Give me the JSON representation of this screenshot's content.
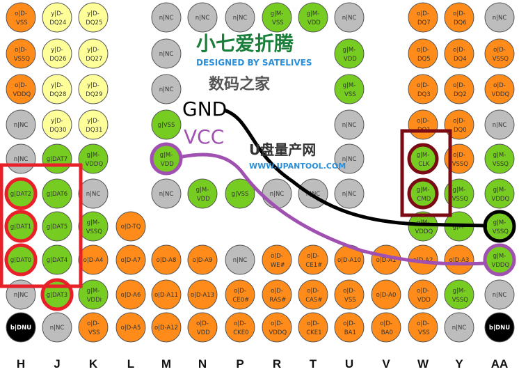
{
  "columns": [
    "H",
    "J",
    "K",
    "L",
    "M",
    "N",
    "P",
    "R",
    "T",
    "U",
    "V",
    "W",
    "Y",
    "AA"
  ],
  "palette": {
    "o": "#FF8C1A",
    "y": "#FFFF99",
    "g": "#77CC22",
    "n": "#BDBDBD",
    "b": "#000000"
  },
  "pin_rows": [
    [
      "o|D-\nVSS",
      "y|D-\nDQ24",
      "y|D-\nDQ25",
      null,
      "n|NC",
      "n|NC",
      "n|NC",
      "g|M-\nVSS",
      "g|M-\nVDD",
      "n|NC",
      null,
      "o|D-\nDQ7",
      "o|D-\nDQ6",
      "n|NC"
    ],
    [
      "o|D-\nVSSQ",
      "y|D-\nDQ26",
      "y|D-\nDQ27",
      null,
      "n|NC",
      null,
      null,
      null,
      null,
      "g|M-\nVDD",
      null,
      "o|D-\nDQ5",
      "o|D-\nDQ4",
      "o|D-\nVSSQ"
    ],
    [
      "o|D-\nVDDQ",
      "y|D-\nDQ28",
      "y|D-\nDQ29",
      null,
      "n|NC",
      null,
      null,
      null,
      null,
      "g|M-\nVSS",
      null,
      "o|D-\nDQ3",
      "o|D-\nDQ2",
      "o|D-\nVDDQ"
    ],
    [
      "n|NC",
      "y|D-\nDQ30",
      "y|D-\nDQ31",
      null,
      "g|VSS",
      null,
      null,
      null,
      null,
      "n|NC",
      null,
      "o|D-\nDQ1",
      "o|D-\nDQ0",
      "n|NC"
    ],
    [
      "n|NC",
      "g|DAT7",
      "g|M-\nVDDQ",
      null,
      "g|M-\nVDD",
      null,
      null,
      null,
      null,
      "n|NC",
      null,
      "g|M-\nCLK",
      "o|D-\nVSSQ",
      "g|M-\nVSSQ"
    ],
    [
      "g|DAT2",
      "g|DAT6",
      "n|NC",
      null,
      "n|NC",
      "g|M-\nVDD",
      "g|VSS",
      "n|NC",
      "n|NC",
      "n|NC",
      null,
      "g|M-\nCMD",
      "g|M-\nVSSQ",
      "g|M-\nVDDQ"
    ],
    [
      "g|DAT1",
      "g|DAT5",
      "g|M-\nVSSQ",
      "o|D-TQ",
      null,
      null,
      null,
      null,
      null,
      null,
      null,
      "g|M-\nVDDQ",
      "g|M-",
      "g|M-\nVSSQ"
    ],
    [
      "g|DAT0",
      "g|DAT4",
      "o|D-A4",
      "o|D-A7",
      "o|D-A8",
      "o|D-A9",
      "n|NC",
      "o|D-\nWE#",
      "o|D-\nCE1#",
      "o|D-A10",
      "o|D-A1",
      "o|D-A2",
      "o|D-A3",
      "g|M-\nVDDQ"
    ],
    [
      "n|NC",
      "g|DAT3",
      "g|M-\nVDDi",
      "o|D-A6",
      "o|D-A11",
      "o|D-A13",
      "o|D-\nCE0#",
      "o|D-\nRAS#",
      "o|D-\nCAS#",
      "o|D-\nVSS",
      "o|D-A0",
      "o|D-\nVDD",
      "g|M-\nVSSQ",
      "n|NC"
    ],
    [
      "b|DNU",
      "n|NC",
      "o|D-\nVSS",
      "o|D-A5",
      "o|D-A12",
      "o|D-\nVDD",
      "o|D-\nCKE0",
      "o|D-\nVDDQ",
      "o|D-\nCKE1",
      "o|D-\nBA1",
      "o|D-\nBA0",
      "o|D-\nVSS",
      "n|NC",
      "b|DNU"
    ]
  ],
  "annotations": {
    "gnd_label": "GND",
    "vcc_label": "VCC",
    "gnd_color": "#000000",
    "vcc_color": "#A050B0",
    "data_box_color": "#E8202A",
    "clk_box_color": "#7A0A14"
  },
  "watermarks": {
    "left_cn": "小七爱折腾",
    "left_en": "DESIGNED BY SATELIVES",
    "right_cn_top": "数码之家",
    "right_cn_bottom": "U盘量产网",
    "right_url": "WWW.UPANTOOL.COM"
  }
}
